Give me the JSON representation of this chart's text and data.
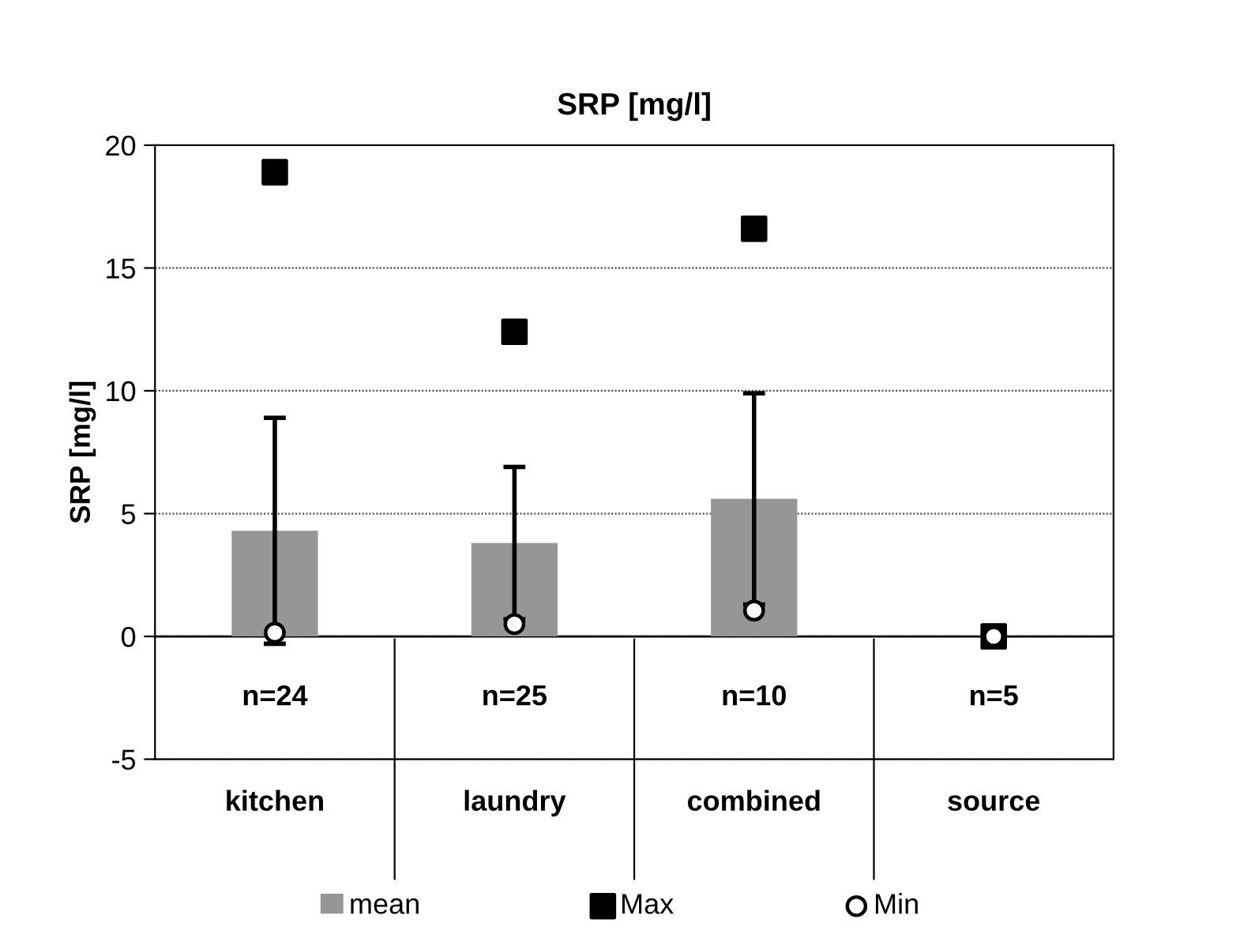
{
  "chart_data": {
    "type": "bar",
    "title": "SRP [mg/l]",
    "ylabel": "SRP [mg/l]",
    "categories": [
      "kitchen",
      "laundry",
      "combined",
      "source"
    ],
    "series": [
      {
        "name": "mean",
        "color": "#969696",
        "values": [
          4.3,
          3.8,
          5.6,
          0.0
        ],
        "errors": [
          4.6,
          3.1,
          4.3,
          null
        ]
      },
      {
        "name": "Max",
        "type": "scatter",
        "marker": "square",
        "color": "#000000",
        "values": [
          18.9,
          12.4,
          16.6,
          0.0
        ]
      },
      {
        "name": "Min",
        "type": "scatter",
        "marker": "circle",
        "color": "#ffffff",
        "values": [
          0.15,
          0.5,
          1.05,
          0.0
        ]
      }
    ],
    "annotations": [
      "n=24",
      "n=25",
      "n=10",
      "n=5"
    ],
    "ylim": [
      -5,
      20
    ],
    "yticks": [
      -5,
      0,
      5,
      10,
      15,
      20
    ],
    "grid": "y",
    "legend": "bottom"
  }
}
